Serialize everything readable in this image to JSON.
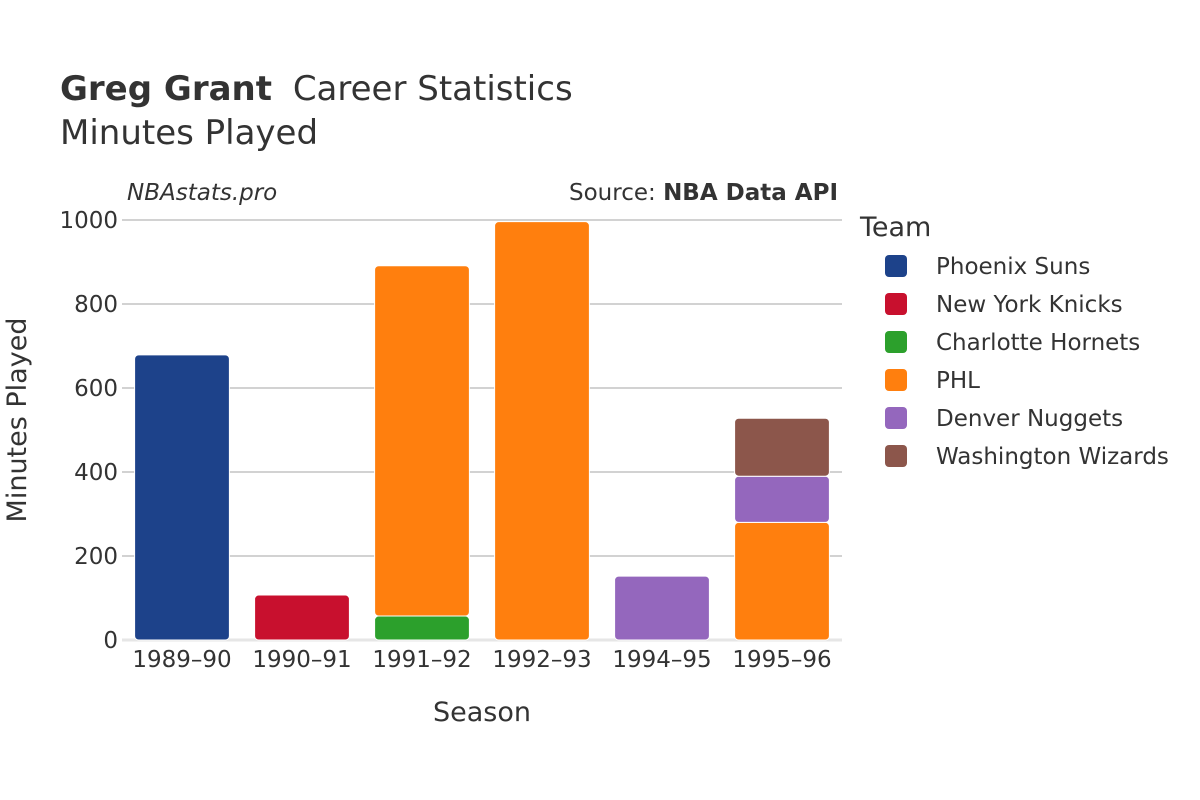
{
  "chart_data": {
    "type": "bar",
    "stacked": true,
    "title_bold": "Greg Grant",
    "title_rest": "Career Statistics",
    "subtitle": "Minutes Played",
    "credit_left": "NBAstats.pro",
    "credit_right_prefix": "Source: ",
    "credit_right_bold": "NBA Data API",
    "xlabel": "Season",
    "ylabel": "Minutes Played",
    "ylim": [
      0,
      1000
    ],
    "yticks": [
      0,
      200,
      400,
      600,
      800,
      1000
    ],
    "grid": true,
    "legend_title": "Team",
    "legend_position": "right",
    "categories": [
      "1989–90",
      "1990–91",
      "1991–92",
      "1992–93",
      "1994–95",
      "1995–96"
    ],
    "series": [
      {
        "name": "Phoenix Suns",
        "color": "#1d428a",
        "values": [
          679,
          0,
          0,
          0,
          0,
          0
        ]
      },
      {
        "name": "New York Knicks",
        "color": "#c8102e",
        "values": [
          0,
          107,
          0,
          0,
          0,
          0
        ]
      },
      {
        "name": "Charlotte Hornets",
        "color": "#2ca02c",
        "values": [
          0,
          0,
          57,
          0,
          0,
          0
        ]
      },
      {
        "name": "PHL",
        "color": "#ff7f0e",
        "values": [
          0,
          0,
          834,
          996,
          0,
          280
        ]
      },
      {
        "name": "Denver Nuggets",
        "color": "#9467bd",
        "values": [
          0,
          0,
          0,
          0,
          152,
          110
        ]
      },
      {
        "name": "Washington Wizards",
        "color": "#8c564b",
        "values": [
          0,
          0,
          0,
          0,
          0,
          138
        ]
      }
    ]
  }
}
